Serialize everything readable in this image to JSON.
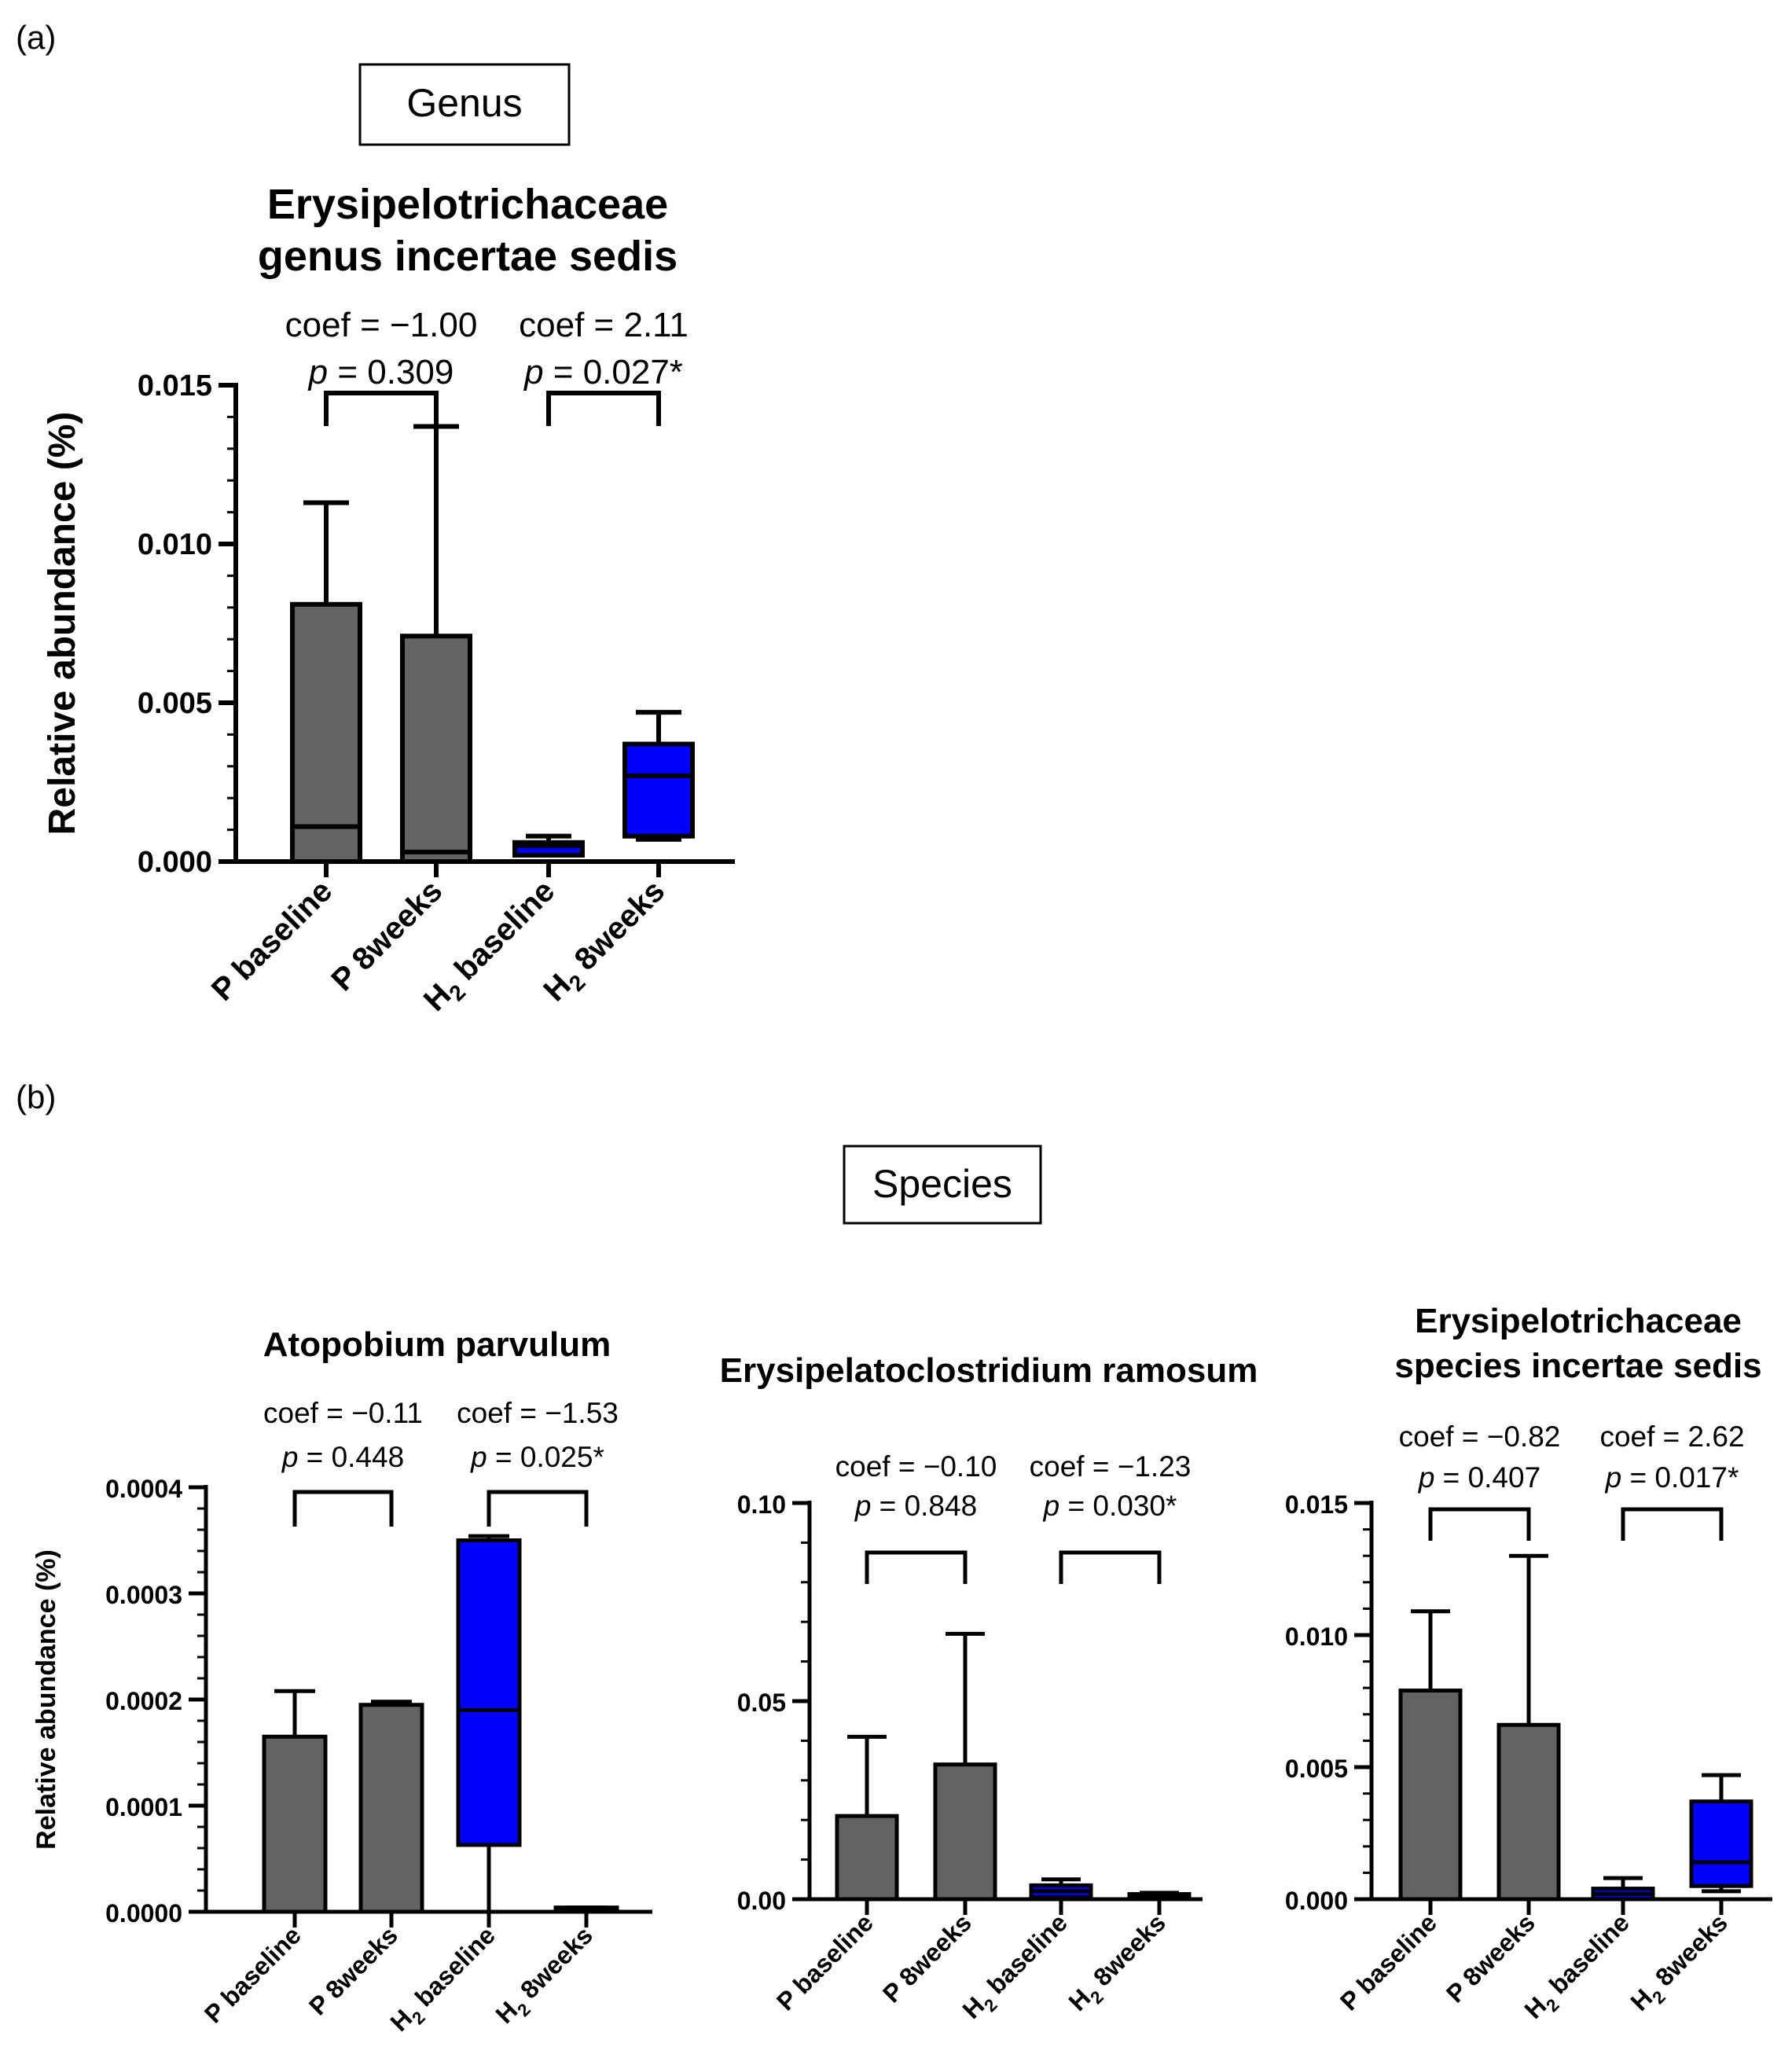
{
  "panel_a_letter": "(a)",
  "panel_b_letter": "(b)",
  "genus_label": "Genus",
  "species_label": "Species",
  "colors": {
    "placebo": "#636363",
    "hydrogen": "#0000ff",
    "line": "#000000"
  },
  "chart_data": [
    {
      "type": "box",
      "title": "Erysipelotrichaceae genus incertae sedis",
      "title_lines": [
        "Erysipelotrichaceae",
        "genus incertae sedis"
      ],
      "ylabel": "Relative abundance (%)",
      "ylim": [
        0,
        0.015
      ],
      "yticks": [
        "0.000",
        "0.005",
        "0.010",
        "0.015"
      ],
      "categories": [
        {
          "main": "P baseline",
          "sub": "",
          "rest": ""
        },
        {
          "main": "P 8weeks",
          "sub": "",
          "rest": ""
        },
        {
          "main": "H",
          "sub": "2",
          "rest": " baseline"
        },
        {
          "main": "H",
          "sub": "2",
          "rest": " 8weeks"
        }
      ],
      "groups": [
        {
          "group": "P baseline",
          "color": "placebo",
          "q1": 0,
          "median": 0.0011,
          "q3": 0.0081,
          "min": 0,
          "max": 0.0113
        },
        {
          "group": "P 8weeks",
          "color": "placebo",
          "q1": 0,
          "median": 0.0003,
          "q3": 0.0071,
          "min": 0,
          "max": 0.0137
        },
        {
          "group": "H2 baseline",
          "color": "hydrogen",
          "q1": 0.0002,
          "median": 0.0005,
          "q3": 0.0006,
          "min": 0.0002,
          "max": 0.0008
        },
        {
          "group": "H2 8weeks",
          "color": "hydrogen",
          "q1": 0.0008,
          "median": 0.0027,
          "q3": 0.0037,
          "min": 0.0007,
          "max": 0.0047
        }
      ],
      "comparisons": [
        {
          "coef": "coef = −1.00",
          "p": "= 0.309",
          "from": 0,
          "to": 1
        },
        {
          "coef": "coef = 2.11",
          "p": "= 0.027*",
          "from": 2,
          "to": 3
        }
      ]
    },
    {
      "type": "box",
      "title": "Atopobium parvulum",
      "title_lines": [
        "Atopobium parvulum"
      ],
      "ylabel": "Relative abundance (%)",
      "ylim": [
        0,
        0.0004
      ],
      "yticks": [
        "0.0000",
        "0.0001",
        "0.0002",
        "0.0003",
        "0.0004"
      ],
      "categories": [
        {
          "main": "P baseline",
          "sub": "",
          "rest": ""
        },
        {
          "main": "P 8weeks",
          "sub": "",
          "rest": ""
        },
        {
          "main": "H",
          "sub": "2",
          "rest": " baseline"
        },
        {
          "main": "H",
          "sub": "2",
          "rest": " 8weeks"
        }
      ],
      "groups": [
        {
          "group": "P baseline",
          "color": "placebo",
          "q1": 0,
          "median": 0,
          "q3": 0.000165,
          "min": 0,
          "max": 0.000208
        },
        {
          "group": "P 8weeks",
          "color": "placebo",
          "q1": 0,
          "median": 0,
          "q3": 0.000195,
          "min": 0,
          "max": 0.000198
        },
        {
          "group": "H2 baseline",
          "color": "hydrogen",
          "q1": 6.3e-05,
          "median": 0.00019,
          "q3": 0.00035,
          "min": 0,
          "max": 0.000354
        },
        {
          "group": "H2 8weeks",
          "color": "hydrogen",
          "q1": 0,
          "median": 2e-06,
          "q3": 4e-06,
          "min": 0,
          "max": 4e-06
        }
      ],
      "comparisons": [
        {
          "coef": "coef = −0.11",
          "p": "= 0.448",
          "from": 0,
          "to": 1
        },
        {
          "coef": "coef = −1.53",
          "p": "= 0.025*",
          "from": 2,
          "to": 3
        }
      ]
    },
    {
      "type": "box",
      "title": "Erysipelatoclostridium ramosum",
      "title_lines": [
        "Erysipelatoclostridium ramosum"
      ],
      "ylabel": "",
      "ylim": [
        0,
        0.1
      ],
      "yticks": [
        "0.00",
        "0.05",
        "0.10"
      ],
      "categories": [
        {
          "main": "P baseline",
          "sub": "",
          "rest": ""
        },
        {
          "main": "P 8weeks",
          "sub": "",
          "rest": ""
        },
        {
          "main": "H",
          "sub": "2",
          "rest": " baseline"
        },
        {
          "main": "H",
          "sub": "2",
          "rest": " 8weeks"
        }
      ],
      "groups": [
        {
          "group": "P baseline",
          "color": "placebo",
          "q1": 0,
          "median": 0,
          "q3": 0.021,
          "min": 0,
          "max": 0.041
        },
        {
          "group": "P 8weeks",
          "color": "placebo",
          "q1": 0,
          "median": 0,
          "q3": 0.034,
          "min": 0,
          "max": 0.067
        },
        {
          "group": "H2 baseline",
          "color": "hydrogen",
          "q1": 0.0005,
          "median": 0.002,
          "q3": 0.0035,
          "min": 0,
          "max": 0.005
        },
        {
          "group": "H2 8weeks",
          "color": "hydrogen",
          "q1": 0.0002,
          "median": 0.0008,
          "q3": 0.0013,
          "min": 0,
          "max": 0.0016
        }
      ],
      "comparisons": [
        {
          "coef": "coef = −0.10",
          "p": "= 0.848",
          "from": 0,
          "to": 1
        },
        {
          "coef": "coef = −1.23",
          "p": "= 0.030*",
          "from": 2,
          "to": 3
        }
      ]
    },
    {
      "type": "box",
      "title": "Erysipelotrichaceae species incertae sedis",
      "title_lines": [
        "Erysipelotrichaceae",
        "species incertae sedis"
      ],
      "ylabel": "",
      "ylim": [
        0,
        0.015
      ],
      "yticks": [
        "0.000",
        "0.005",
        "0.010",
        "0.015"
      ],
      "categories": [
        {
          "main": "P baseline",
          "sub": "",
          "rest": ""
        },
        {
          "main": "P 8weeks",
          "sub": "",
          "rest": ""
        },
        {
          "main": "H",
          "sub": "2",
          "rest": " baseline"
        },
        {
          "main": "H",
          "sub": "2",
          "rest": " 8weeks"
        }
      ],
      "groups": [
        {
          "group": "P baseline",
          "color": "placebo",
          "q1": 0,
          "median": 0,
          "q3": 0.0079,
          "min": 0,
          "max": 0.0109
        },
        {
          "group": "P 8weeks",
          "color": "placebo",
          "q1": 0,
          "median": 0,
          "q3": 0.0066,
          "min": 0,
          "max": 0.013
        },
        {
          "group": "H2 baseline",
          "color": "hydrogen",
          "q1": 0,
          "median": 0.0002,
          "q3": 0.0004,
          "min": 0,
          "max": 0.0008
        },
        {
          "group": "H2 8weeks",
          "color": "hydrogen",
          "q1": 0.0005,
          "median": 0.0014,
          "q3": 0.0037,
          "min": 0.0003,
          "max": 0.0047
        }
      ],
      "comparisons": [
        {
          "coef": "coef = −0.82",
          "p": "= 0.407",
          "from": 0,
          "to": 1
        },
        {
          "coef": "coef = 2.62",
          "p": "= 0.017*",
          "from": 2,
          "to": 3
        }
      ]
    }
  ]
}
